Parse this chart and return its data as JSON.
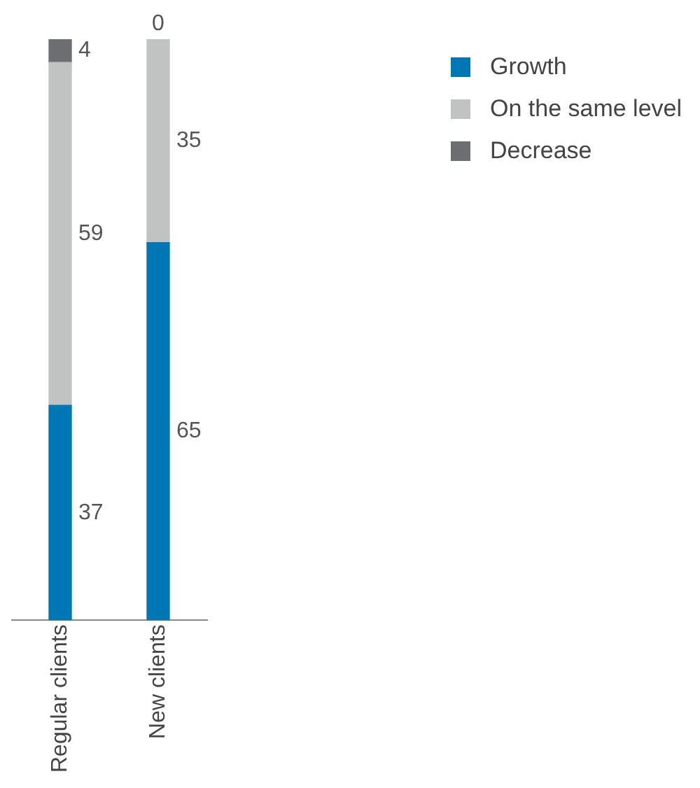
{
  "chart_data": {
    "type": "bar",
    "stacked": true,
    "data_labels": true,
    "legend": "top right",
    "grid": false,
    "categories": [
      "Regular clients",
      "New clients"
    ],
    "series": [
      {
        "name": "Growth",
        "color": "#0077b5",
        "values": [
          37,
          65
        ]
      },
      {
        "name": "On the same level",
        "color": "#c1c2c2",
        "values": [
          59,
          35
        ]
      },
      {
        "name": "Decrease",
        "color": "#6d6e71",
        "values": [
          4,
          0
        ]
      }
    ]
  }
}
